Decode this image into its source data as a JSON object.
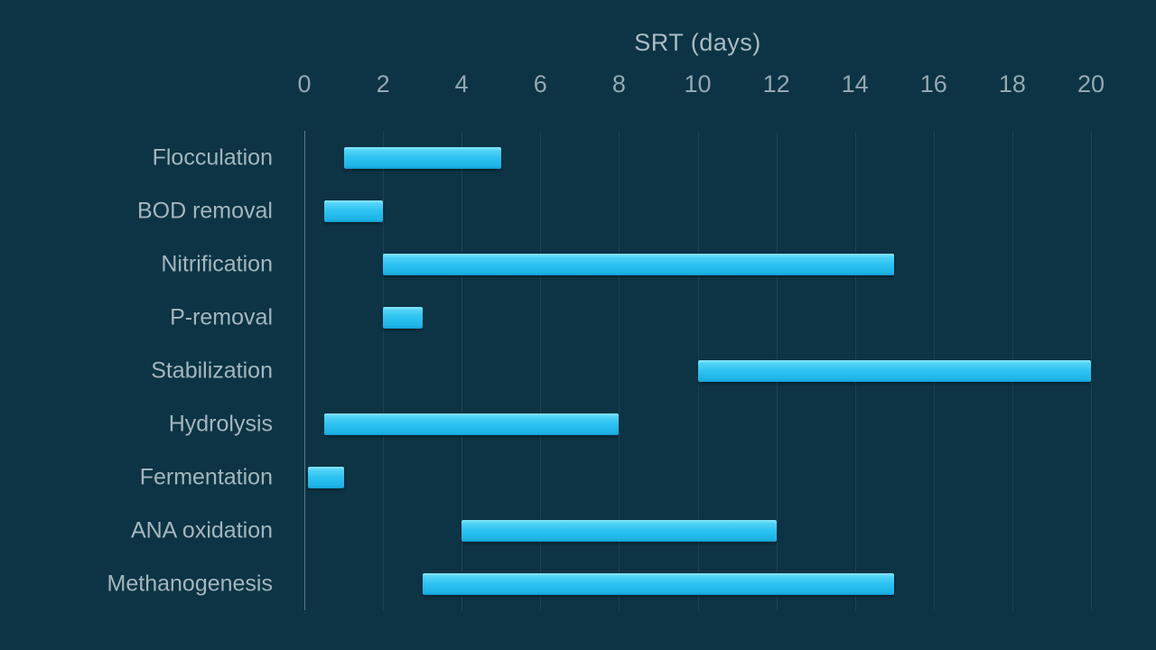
{
  "chart_data": {
    "type": "bar",
    "orientation": "horizontal",
    "title": "SRT (days)",
    "xlabel": "SRT (days)",
    "ylabel": "",
    "xlim": [
      0,
      20
    ],
    "xticks": [
      0,
      2,
      4,
      6,
      8,
      10,
      12,
      14,
      16,
      18,
      20
    ],
    "grid": "vertical",
    "legend": "none",
    "categories": [
      "Flocculation",
      "BOD removal",
      "Nitrification",
      "P-removal",
      "Stabilization",
      "Hydrolysis",
      "Fermentation",
      "ANA oxidation",
      "Methanogenesis"
    ],
    "ranges": [
      {
        "category": "Flocculation",
        "start": 1,
        "end": 5
      },
      {
        "category": "BOD removal",
        "start": 0.5,
        "end": 2
      },
      {
        "category": "Nitrification",
        "start": 2,
        "end": 15
      },
      {
        "category": "P-removal",
        "start": 2,
        "end": 3
      },
      {
        "category": "Stabilization",
        "start": 10,
        "end": 20
      },
      {
        "category": "Hydrolysis",
        "start": 0.5,
        "end": 8
      },
      {
        "category": "Fermentation",
        "start": 0.1,
        "end": 1
      },
      {
        "category": "ANA oxidation",
        "start": 4,
        "end": 12
      },
      {
        "category": "Methanogenesis",
        "start": 3,
        "end": 15
      }
    ]
  },
  "colors": {
    "background": "#0c3444",
    "bar_accent": "#2cc2f1",
    "grid": "#1a4a5c",
    "axis": "#5d7884",
    "text": "#a3b6bf",
    "tick_text": "#93a8b2"
  }
}
